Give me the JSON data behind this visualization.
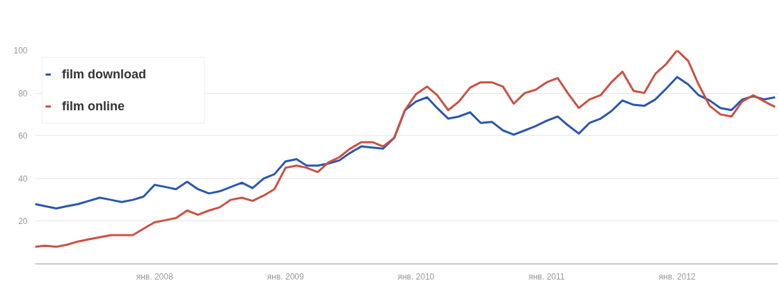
{
  "chart_data": {
    "type": "line",
    "x": [
      "2007-02",
      "2007-03",
      "2007-04",
      "2007-05",
      "2007-06",
      "2007-07",
      "2007-08",
      "2007-09",
      "2007-10",
      "2007-11",
      "2007-12",
      "2008-01",
      "2008-02",
      "2008-03",
      "2008-04",
      "2008-05",
      "2008-06",
      "2008-07",
      "2008-08",
      "2008-09",
      "2008-10",
      "2008-11",
      "2008-12",
      "2009-01",
      "2009-02",
      "2009-03",
      "2009-04",
      "2009-05",
      "2009-06",
      "2009-07",
      "2009-08",
      "2009-09",
      "2009-10",
      "2009-11",
      "2009-12",
      "2010-01",
      "2010-02",
      "2010-03",
      "2010-04",
      "2010-05",
      "2010-06",
      "2010-07",
      "2010-08",
      "2010-09",
      "2010-10",
      "2010-11",
      "2010-12",
      "2011-01",
      "2011-02",
      "2011-03",
      "2011-04",
      "2011-05",
      "2011-06",
      "2011-07",
      "2011-08",
      "2011-09",
      "2011-10",
      "2011-11",
      "2011-12",
      "2012-01",
      "2012-02",
      "2012-03",
      "2012-04",
      "2012-05",
      "2012-06",
      "2012-07",
      "2012-08",
      "2012-09",
      "2012-10"
    ],
    "series": [
      {
        "name": "film download",
        "color": "#2a56b0",
        "values": [
          28,
          27,
          26,
          27,
          28,
          29.5,
          31,
          30,
          29,
          30,
          31.5,
          37,
          36,
          35,
          38.5,
          35,
          33,
          34,
          36,
          38,
          35.5,
          40,
          42,
          48,
          49,
          46,
          46,
          47,
          48.5,
          52,
          55,
          54.5,
          54,
          59,
          72,
          76,
          78,
          73,
          68,
          69,
          71,
          66,
          66.5,
          62.5,
          60.5,
          62.5,
          64.5,
          67,
          69,
          65,
          61,
          66,
          68,
          71.5,
          76.5,
          74.5,
          74,
          77,
          82,
          87.5,
          84,
          79,
          76.5,
          73,
          72,
          77,
          78.5,
          77,
          78
        ]
      },
      {
        "name": "film online",
        "color": "#cc5040",
        "values": [
          8,
          8.5,
          8,
          9,
          10.5,
          11.5,
          12.5,
          13.5,
          13.5,
          13.5,
          16.5,
          19.5,
          20.5,
          21.5,
          25,
          23,
          25,
          26.5,
          30,
          31,
          29.5,
          32,
          35,
          45,
          46,
          45,
          43,
          47.5,
          50,
          54,
          57,
          57,
          55,
          59,
          72,
          79.5,
          83,
          79,
          72,
          76,
          82.5,
          85,
          85,
          83,
          75,
          80,
          81.5,
          85,
          87,
          80,
          73,
          77,
          79,
          85,
          90,
          81,
          80,
          89,
          93.5,
          100,
          95,
          84,
          74,
          70,
          69,
          76,
          79,
          76,
          73.5
        ]
      }
    ],
    "xlim": [
      "2007-02",
      "2012-10-10"
    ],
    "xticks": [
      {
        "value": "2008-01",
        "label": "янв. 2008"
      },
      {
        "value": "2009-01",
        "label": "янв. 2009"
      },
      {
        "value": "2010-01",
        "label": "янв. 2010"
      },
      {
        "value": "2011-01",
        "label": "янв. 2011"
      },
      {
        "value": "2012-01",
        "label": "янв. 2012"
      }
    ],
    "ylim": [
      0,
      100
    ],
    "yticks": [
      20,
      40,
      60,
      80,
      100
    ],
    "grid": "y",
    "legend": "top left",
    "marker": "none",
    "line_style": "solid"
  }
}
